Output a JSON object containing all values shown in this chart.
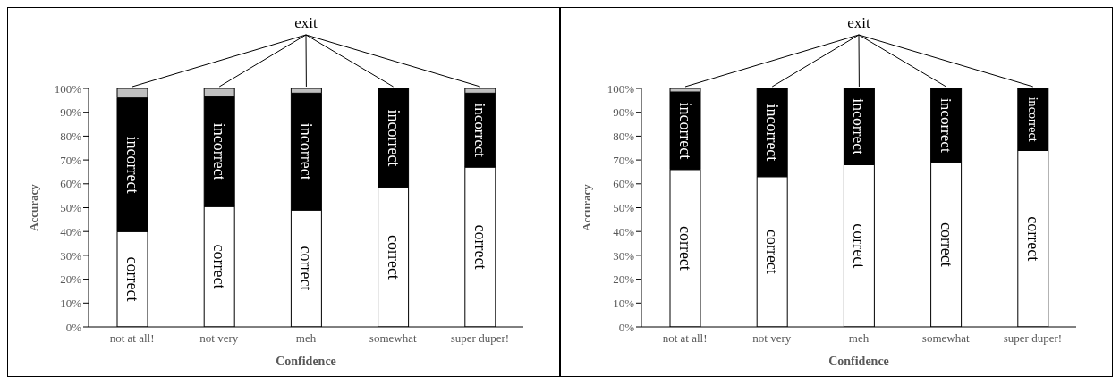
{
  "chart_data": [
    {
      "type": "bar",
      "stacked": true,
      "xlabel": "Confidence",
      "ylabel": "Accuracy",
      "categories": [
        "not at all!",
        "not very",
        "meh",
        "somewhat",
        "super duper!"
      ],
      "ylim": [
        0,
        100
      ],
      "yticks": [
        {
          "value": 0,
          "label": "0%"
        },
        {
          "value": 10,
          "label": "10%"
        },
        {
          "value": 20,
          "label": "20%"
        },
        {
          "value": 30,
          "label": "30%"
        },
        {
          "value": 40,
          "label": "40%"
        },
        {
          "value": 50,
          "label": "50%"
        },
        {
          "value": 60,
          "label": "60%"
        },
        {
          "value": 70,
          "label": "70%"
        },
        {
          "value": 80,
          "label": "80%"
        },
        {
          "value": 90,
          "label": "90%"
        },
        {
          "value": 100,
          "label": "100%"
        }
      ],
      "series": [
        {
          "name": "correct",
          "color": "#ffffff",
          "values": [
            40,
            50.5,
            49,
            58.5,
            67
          ]
        },
        {
          "name": "incorrect",
          "color": "#000000",
          "values": [
            56,
            46,
            49,
            41.5,
            31
          ]
        },
        {
          "name": "exit",
          "color": "#c0c0c0",
          "values": [
            4,
            3.5,
            2,
            0,
            2
          ]
        }
      ]
    },
    {
      "type": "bar",
      "stacked": true,
      "xlabel": "Confidence",
      "ylabel": "Accuracy",
      "categories": [
        "not at all!",
        "not very",
        "meh",
        "somewhat",
        "super duper!"
      ],
      "ylim": [
        0,
        100
      ],
      "yticks": [
        {
          "value": 0,
          "label": "0%"
        },
        {
          "value": 10,
          "label": "10%"
        },
        {
          "value": 20,
          "label": "20%"
        },
        {
          "value": 30,
          "label": "30%"
        },
        {
          "value": 40,
          "label": "40%"
        },
        {
          "value": 50,
          "label": "50%"
        },
        {
          "value": 60,
          "label": "60%"
        },
        {
          "value": 70,
          "label": "70%"
        },
        {
          "value": 80,
          "label": "80%"
        },
        {
          "value": 90,
          "label": "90%"
        },
        {
          "value": 100,
          "label": "100%"
        }
      ],
      "series": [
        {
          "name": "correct",
          "color": "#ffffff",
          "values": [
            66,
            63,
            68,
            69,
            74
          ]
        },
        {
          "name": "incorrect",
          "color": "#000000",
          "values": [
            32.5,
            37,
            32,
            31,
            26
          ]
        },
        {
          "name": "exit",
          "color": "#c0c0c0",
          "values": [
            1.5,
            0,
            0,
            0,
            0
          ]
        }
      ]
    }
  ]
}
